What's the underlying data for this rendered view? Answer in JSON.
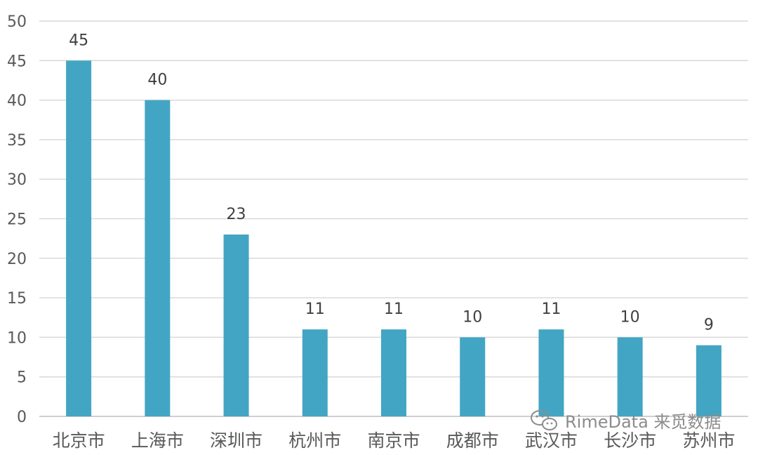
{
  "chart_data": {
    "type": "bar",
    "categories": [
      "北京市",
      "上海市",
      "深圳市",
      "杭州市",
      "南京市",
      "成都市",
      "武汉市",
      "长沙市",
      "苏州市"
    ],
    "values": [
      45,
      40,
      23,
      11,
      11,
      10,
      11,
      10,
      9
    ],
    "data_labels": [
      "45",
      "40",
      "23",
      "11",
      "11",
      "10",
      "11",
      "10",
      "9"
    ],
    "ylim": [
      0,
      50
    ],
    "yticks": [
      0,
      5,
      10,
      15,
      20,
      25,
      30,
      35,
      40,
      45,
      50
    ],
    "title": "",
    "xlabel": "",
    "ylabel": "",
    "grid": true,
    "legend": "none",
    "bar_color": "#43a5c4"
  },
  "watermark": {
    "text": "RimeData 来觅数据",
    "icon": "wechat-icon"
  }
}
